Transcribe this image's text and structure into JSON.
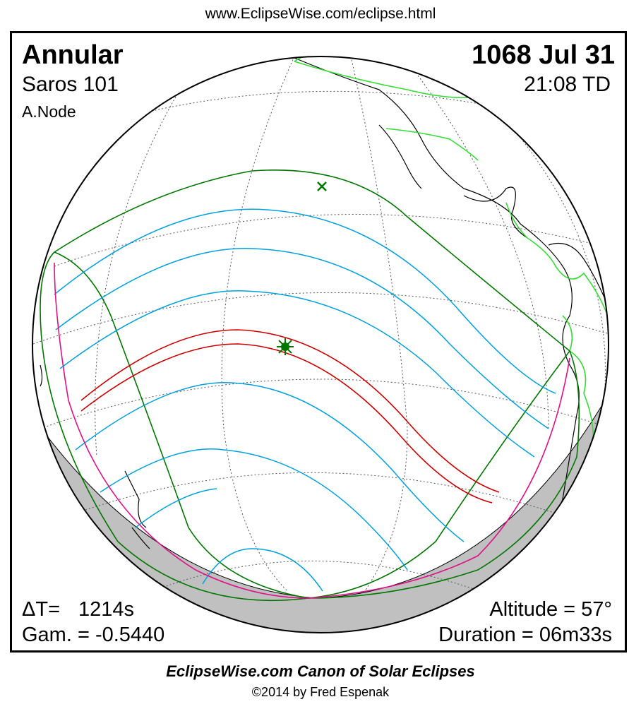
{
  "header": {
    "url": "www.EclipseWise.com/eclipse.html"
  },
  "eclipse": {
    "type": "Annular",
    "saros": "Saros 101",
    "node": "A.Node",
    "date": "1068 Jul 31",
    "time": "21:08 TD",
    "delta_t_label": "ΔT=",
    "delta_t_value": "1214s",
    "gamma": "Gam. = -0.5440",
    "altitude": "Altitude = 57°",
    "duration": "Duration = 06m33s"
  },
  "map": {
    "projection": "orthographic",
    "colors": {
      "central_path": "#cc0000",
      "penumbra_limits": "#007700",
      "magnitude_lines": "#00a0dd",
      "rise_set_limits": "#dd1188",
      "borders": "#33dd33",
      "night_shade": "#c0c0c0"
    },
    "markers": [
      {
        "name": "greatest-eclipse",
        "symbol": "star"
      },
      {
        "name": "subsolar-point",
        "symbol": "x"
      }
    ]
  },
  "footer": {
    "canon": "EclipseWise.com Canon of Solar Eclipses",
    "copyright": "©2014 by Fred Espenak"
  }
}
